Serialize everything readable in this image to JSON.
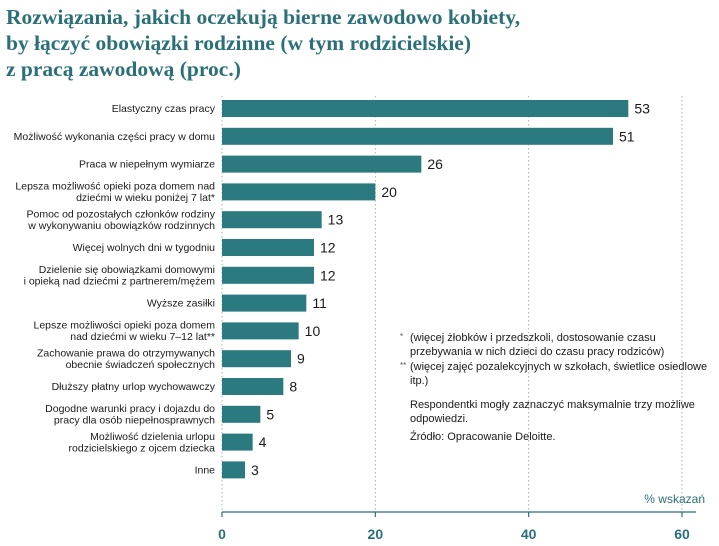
{
  "header": {
    "title_lines": [
      "Rozwiązania, jakich oczekują bierne zawodowo kobiety,",
      "by łączyć obowiązki rodzinne (w tym rodzicielskie)",
      "z pracą zawodową (proc.)"
    ]
  },
  "chart_data": {
    "type": "bar",
    "orientation": "horizontal",
    "title": "Rozwiązania, jakich oczekują bierne zawodowo kobiety, by łączyć obowiązki rodzinne (w tym rodzicielskie) z pracą zawodową (proc.)",
    "categories": [
      [
        "Elastyczny czas pracy"
      ],
      [
        "Możliwość wykonania części pracy w domu"
      ],
      [
        "Praca w niepełnym wymiarze"
      ],
      [
        "Lepsza możliwość opieki poza domem nad",
        "dziećmi w wieku poniżej 7 lat*"
      ],
      [
        "Pomoc od pozostałych członków rodziny",
        "w wykonywaniu obowiązków rodzinnych"
      ],
      [
        "Więcej wolnych dni w tygodniu"
      ],
      [
        "Dzielenie się obowiązkami domowymi",
        "i opieką nad dziećmi z partnerem/mężem"
      ],
      [
        "Wyższe zasiłki"
      ],
      [
        "Lepsze możliwości opieki poza domem",
        "nad dziećmi w wieku 7–12 lat**"
      ],
      [
        "Zachowanie prawa do otrzymywanych",
        "obecnie świadczeń społecznych"
      ],
      [
        "Dłuższy płatny urlop wychowawczy"
      ],
      [
        "Dogodne warunki pracy i dojazdu do",
        "pracy dla osób niepełnosprawnych"
      ],
      [
        "Możliwość dzielenia urlopu",
        "rodzicielskiego z ojcem dziecka"
      ],
      [
        "Inne"
      ]
    ],
    "values": [
      53,
      51,
      26,
      20,
      13,
      12,
      12,
      11,
      10,
      9,
      8,
      5,
      4,
      3
    ],
    "value_labels": [
      "53",
      "51",
      "26",
      "20",
      "13",
      "12",
      "12",
      "11",
      "10",
      "9",
      "8",
      "5",
      "4",
      "3"
    ],
    "xlim": [
      0,
      60
    ],
    "xticks": [
      0,
      20,
      40,
      60
    ],
    "xtick_labels": [
      "0",
      "20",
      "40",
      "60"
    ],
    "unit_label": "% wskazań",
    "grid": true,
    "bar_color": "#2b7a80"
  },
  "notes": {
    "footnote_1_mark": "*",
    "footnote_1": "(więcej żłobków i przedszkoli, dostosowanie czasu przebywania w nich dzieci do czasu pracy rodziców)",
    "footnote_2_mark": "**",
    "footnote_2": "(więcej zajęć pozalekcyjnych w szkołach, świetlice osiedlowe itp.)",
    "respondents": "Respondentki mogły zaznaczyć maksymalnie trzy możliwe odpowiedzi.",
    "source": "Źródło: Opracowanie Deloitte."
  }
}
